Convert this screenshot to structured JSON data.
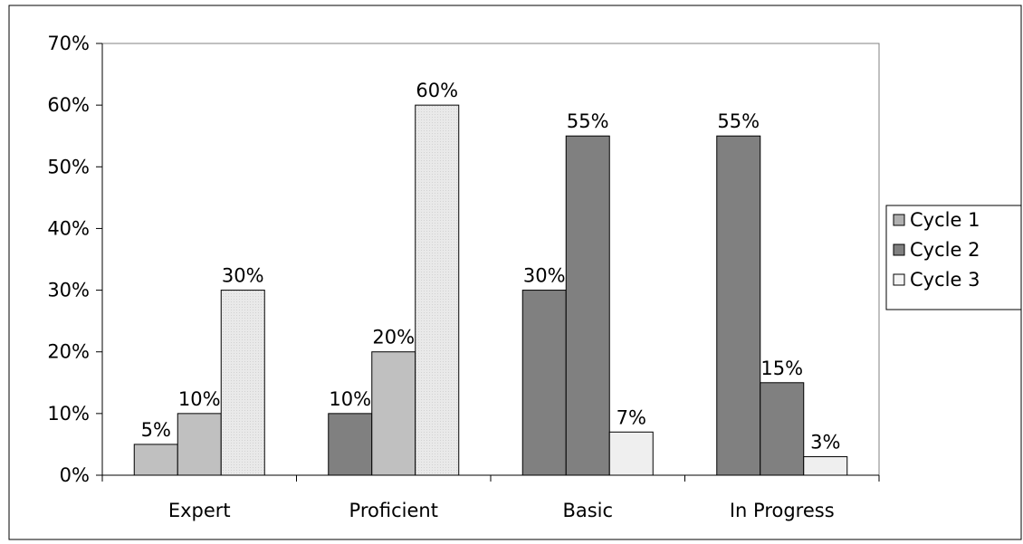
{
  "chart_data": {
    "type": "bar",
    "title": "",
    "xlabel": "",
    "ylabel": "",
    "categories": [
      "Expert",
      "Proficient",
      "Basic",
      "In Progress"
    ],
    "ylim": [
      0,
      70
    ],
    "yticks": [
      0,
      10,
      20,
      30,
      40,
      50,
      60,
      70
    ],
    "ytick_labels": [
      "0%",
      "10%",
      "20%",
      "30%",
      "40%",
      "50%",
      "60%",
      "70%"
    ],
    "grid": false,
    "legend_position": "right",
    "bars": [
      {
        "category": "Expert",
        "value": 5,
        "label": "5%",
        "fill": "#c0c0c0"
      },
      {
        "category": "Expert",
        "value": 10,
        "label": "10%",
        "fill": "#c0c0c0"
      },
      {
        "category": "Expert",
        "value": 30,
        "label": "30%",
        "fill": "#e8e8e8"
      },
      {
        "category": "Proficient",
        "value": 10,
        "label": "10%",
        "fill": "#808080"
      },
      {
        "category": "Proficient",
        "value": 20,
        "label": "20%",
        "fill": "#c0c0c0"
      },
      {
        "category": "Proficient",
        "value": 60,
        "label": "60%",
        "fill": "#e8e8e8"
      },
      {
        "category": "Basic",
        "value": 30,
        "label": "30%",
        "fill": "#808080"
      },
      {
        "category": "Basic",
        "value": 55,
        "label": "55%",
        "fill": "#808080"
      },
      {
        "category": "Basic",
        "value": 7,
        "label": "7%",
        "fill": "#efefef"
      },
      {
        "category": "In Progress",
        "value": 55,
        "label": "55%",
        "fill": "#808080"
      },
      {
        "category": "In Progress",
        "value": 15,
        "label": "15%",
        "fill": "#808080"
      },
      {
        "category": "In Progress",
        "value": 3,
        "label": "3%",
        "fill": "#efefef"
      }
    ],
    "legend": [
      {
        "name": "Cycle 1",
        "color": "#b0b0b0"
      },
      {
        "name": "Cycle 2",
        "color": "#808080"
      },
      {
        "name": "Cycle 3",
        "color": "#f4f4f4"
      }
    ]
  }
}
